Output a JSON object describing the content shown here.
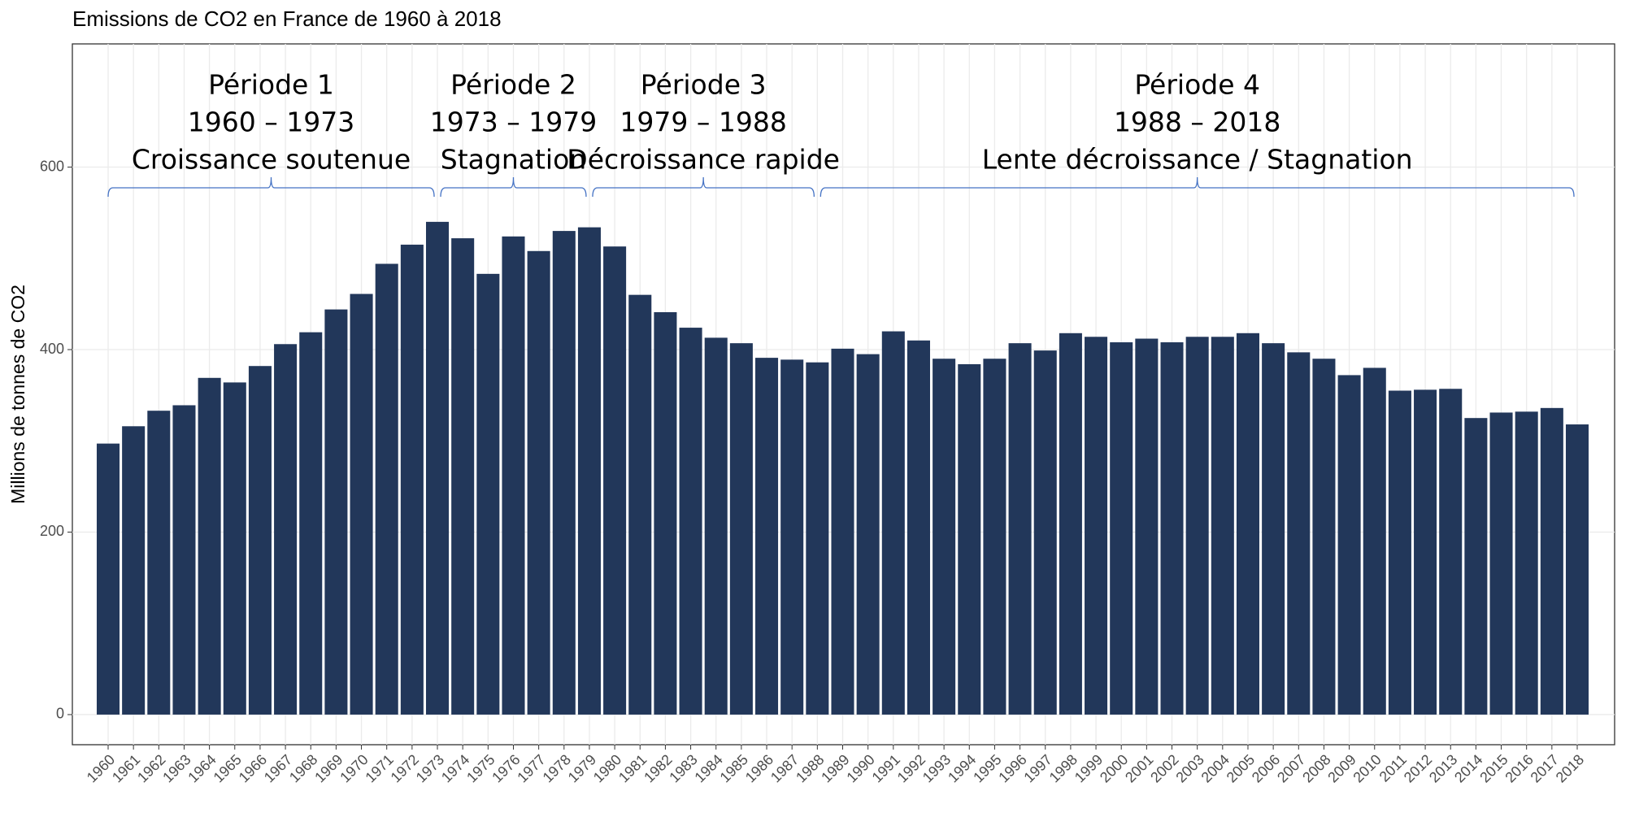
{
  "chart_data": {
    "type": "bar",
    "title": "Emissions de CO2 en France de 1960 à 2018",
    "y_label": "Millions de tonnes de CO2",
    "categories": [
      "1960",
      "1961",
      "1962",
      "1963",
      "1964",
      "1965",
      "1966",
      "1967",
      "1968",
      "1969",
      "1970",
      "1971",
      "1972",
      "1973",
      "1974",
      "1975",
      "1976",
      "1977",
      "1978",
      "1979",
      "1980",
      "1981",
      "1982",
      "1983",
      "1984",
      "1985",
      "1986",
      "1987",
      "1988",
      "1989",
      "1990",
      "1991",
      "1992",
      "1993",
      "1994",
      "1995",
      "1996",
      "1997",
      "1998",
      "1999",
      "2000",
      "2001",
      "2002",
      "2003",
      "2004",
      "2005",
      "2006",
      "2007",
      "2008",
      "2009",
      "2010",
      "2011",
      "2012",
      "2013",
      "2014",
      "2015",
      "2016",
      "2017",
      "2018"
    ],
    "values": [
      297,
      316,
      333,
      339,
      369,
      364,
      382,
      406,
      419,
      444,
      461,
      494,
      515,
      540,
      522,
      483,
      524,
      508,
      530,
      534,
      513,
      460,
      441,
      424,
      413,
      407,
      391,
      389,
      386,
      401,
      395,
      420,
      410,
      390,
      384,
      390,
      407,
      399,
      418,
      414,
      408,
      412,
      408,
      414,
      414,
      418,
      407,
      397,
      390,
      372,
      380,
      355,
      356,
      357,
      325,
      331,
      332,
      336,
      318
    ],
    "color": "#22375a",
    "ylim": [
      -33,
      735
    ],
    "yticks": [
      0,
      200,
      400,
      600
    ],
    "grid": true,
    "annotations": [
      {
        "lines": [
          "Période 1",
          "1960 – 1973",
          "Croissance soutenue"
        ]
      },
      {
        "lines": [
          "Période 2",
          "1973 – 1979",
          "Stagnation"
        ]
      },
      {
        "lines": [
          "Période 3",
          "1979 – 1988",
          "Décroissance rapide"
        ]
      },
      {
        "lines": [
          "Période 4",
          "1988 – 2018",
          "Lente décroissance / Stagnation"
        ]
      }
    ]
  }
}
